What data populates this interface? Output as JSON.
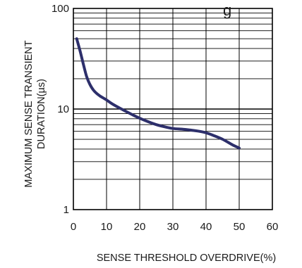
{
  "chart_data": {
    "type": "line",
    "title_fragment": "g",
    "xlabel": "SENSE THRESHOLD OVERDRIVE(%)",
    "ylabel_line1": "MAXIMUM SENSE TRANSIENT",
    "ylabel_line2": "DURATION(µs)",
    "xlim": [
      0,
      60
    ],
    "ylim": [
      1,
      100
    ],
    "yscale": "log",
    "grid": true,
    "x_ticks": [
      0,
      10,
      20,
      30,
      40,
      50,
      60
    ],
    "x_tick_labels": [
      "0",
      "10",
      "20",
      "30",
      "40",
      "50",
      "60"
    ],
    "y_ticks": [
      1,
      10,
      100
    ],
    "y_tick_labels": [
      "1",
      "10",
      "100"
    ],
    "series": [
      {
        "color": "#2d2f6b",
        "x": [
          1,
          2,
          3,
          4,
          5,
          6,
          7,
          8,
          10,
          12,
          15,
          18,
          20,
          22,
          25,
          28,
          30,
          33,
          35,
          38,
          40,
          42,
          45,
          48,
          50
        ],
        "y": [
          50,
          38,
          28,
          21,
          17.5,
          15.5,
          14.3,
          13.5,
          12.3,
          11.1,
          9.8,
          8.7,
          8.1,
          7.6,
          7.0,
          6.6,
          6.4,
          6.3,
          6.2,
          6.0,
          5.8,
          5.5,
          5.0,
          4.4,
          4.1
        ]
      }
    ]
  }
}
